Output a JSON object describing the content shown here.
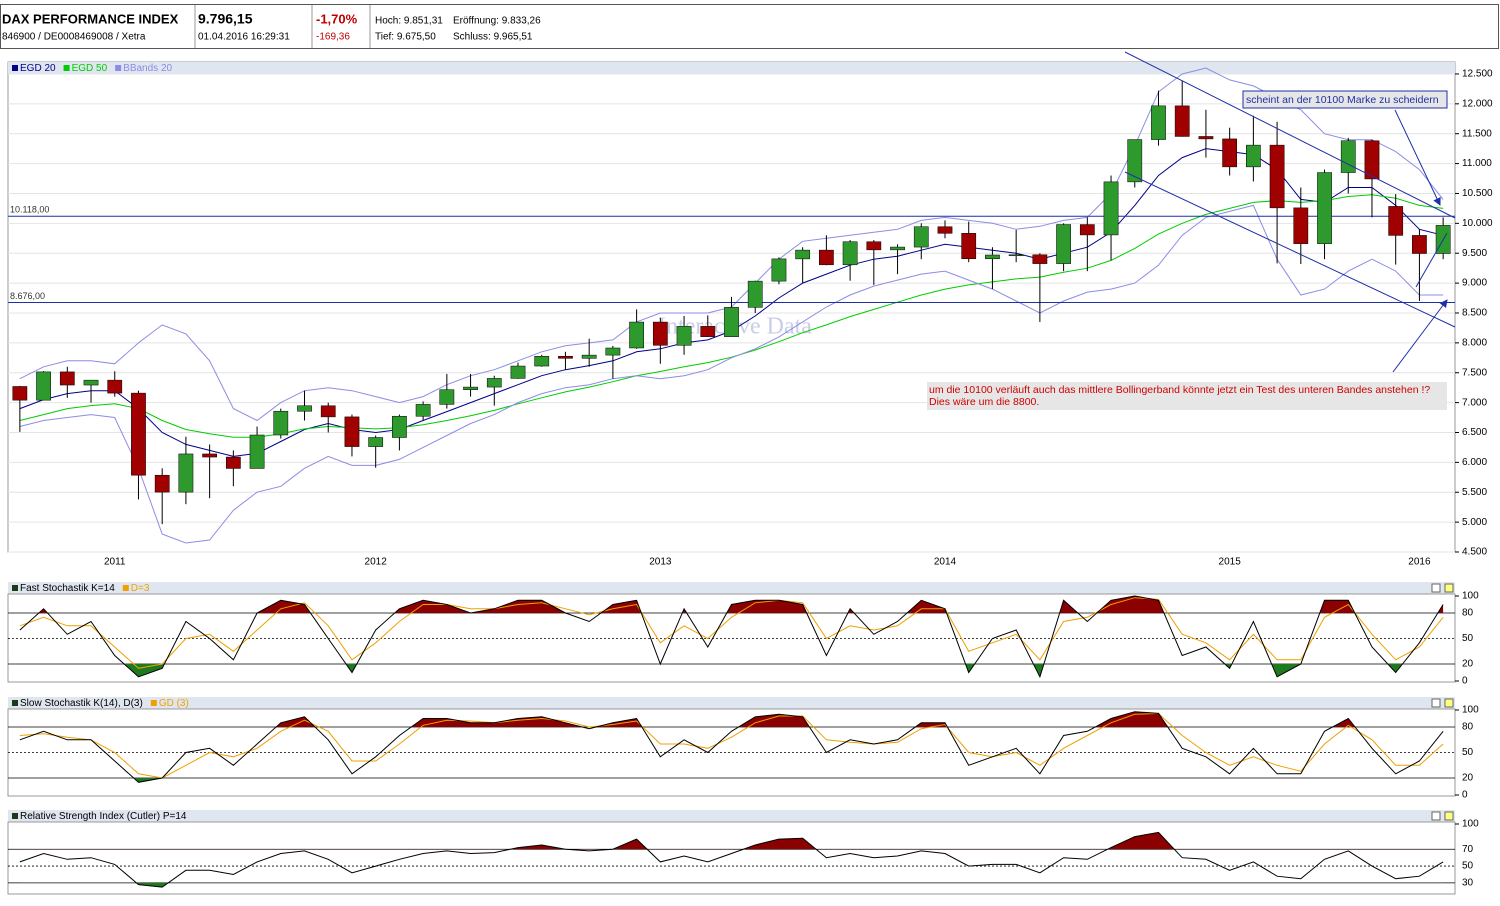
{
  "header": {
    "name": "DAX PERFORMANCE INDEX",
    "ids": "846900 / DE0008469008 / Xetra",
    "price": "9.796,15",
    "time": "01.04.2016 16:29:31",
    "change_pct": "-1,70%",
    "change": "-169,36",
    "high": "Hoch: 9.851,31",
    "open": "Eröffnung: 9.833,26",
    "low": "Tief: 9.675,50",
    "close": "Schluss: 9.965,51"
  },
  "chart_data": [
    {
      "type": "candlestick",
      "watermark": "Interactive Data",
      "categories": [
        null,
        null,
        null,
        null,
        "2011",
        null,
        null,
        null,
        null,
        null,
        null,
        null,
        null,
        null,
        null,
        "2012",
        null,
        null,
        null,
        null,
        null,
        null,
        null,
        null,
        null,
        null,
        null,
        "2013",
        null,
        null,
        null,
        null,
        null,
        null,
        null,
        null,
        null,
        null,
        null,
        "2014",
        null,
        null,
        null,
        null,
        null,
        null,
        null,
        null,
        null,
        null,
        null,
        "2015",
        null,
        null,
        null,
        null,
        null,
        null,
        null,
        "2016",
        null
      ],
      "open": [
        7270,
        7041,
        7514,
        7294,
        7376,
        7159,
        5785,
        5502,
        6141,
        6089,
        5898,
        6458,
        6856,
        6947,
        6761,
        6264,
        6416,
        6772,
        6970,
        7216,
        7260,
        7405,
        7612,
        7776,
        7741,
        7795,
        7914,
        8348,
        7959,
        8276,
        8103,
        8594,
        9033,
        9405,
        9552,
        9306,
        9692,
        9556,
        9603,
        9943,
        9833,
        9407,
        9470,
        9474,
        9326,
        9980,
        9806,
        10694,
        11402,
        11966,
        11454,
        11413,
        10945,
        11309,
        10259,
        9660,
        10850,
        11382,
        10283,
        9798,
        9495
      ],
      "high": [
        7280,
        7527,
        7600,
        7350,
        7524,
        7200,
        5900,
        6430,
        6300,
        6200,
        6600,
        6900,
        7200,
        7000,
        6800,
        6450,
        6800,
        7020,
        7480,
        7480,
        7450,
        7670,
        7800,
        7850,
        8070,
        7950,
        8560,
        8420,
        8450,
        8460,
        8770,
        9040,
        9430,
        9600,
        9800,
        9720,
        9720,
        9650,
        10000,
        10050,
        10030,
        9600,
        9890,
        9500,
        10000,
        10100,
        10800,
        11400,
        12220,
        12390,
        11900,
        11600,
        11800,
        11700,
        10600,
        10900,
        11430,
        11400,
        10490,
        9900,
        10100
      ],
      "low": [
        6510,
        7040,
        7080,
        7000,
        7100,
        5380,
        4966,
        5300,
        5400,
        5600,
        5900,
        6400,
        6700,
        6500,
        6100,
        5910,
        6200,
        6700,
        6900,
        7100,
        6950,
        7400,
        7600,
        7550,
        7600,
        7400,
        7900,
        7650,
        7800,
        8100,
        8100,
        8500,
        8980,
        9000,
        9300,
        9040,
        8970,
        9150,
        9400,
        9750,
        9350,
        8900,
        9350,
        8350,
        9200,
        9200,
        9380,
        10600,
        11300,
        11450,
        11100,
        10800,
        10700,
        9330,
        9320,
        9400,
        10500,
        10100,
        9310,
        8700,
        9400
      ],
      "close": [
        7041,
        7514,
        7294,
        7376,
        7159,
        5785,
        5502,
        6141,
        6089,
        5898,
        6458,
        6856,
        6947,
        6761,
        6264,
        6416,
        6772,
        6970,
        7216,
        7260,
        7405,
        7612,
        7776,
        7741,
        7795,
        7914,
        8348,
        7959,
        8276,
        8103,
        8594,
        9033,
        9405,
        9552,
        9306,
        9692,
        9556,
        9603,
        9943,
        9833,
        9407,
        9470,
        9474,
        9326,
        9980,
        9806,
        10694,
        11402,
        11966,
        11454,
        11413,
        10945,
        11309,
        10259,
        9660,
        10850,
        11382,
        10743,
        9798,
        9495,
        9966
      ],
      "up_color": "#2e9a2e",
      "down_color": "#a00000",
      "series": [
        {
          "name": "EGD 20",
          "color": "#00008b",
          "values": [
            6900,
            7050,
            7150,
            7200,
            7200,
            6900,
            6500,
            6300,
            6200,
            6100,
            6150,
            6350,
            6550,
            6650,
            6550,
            6500,
            6550,
            6700,
            6850,
            7000,
            7150,
            7300,
            7450,
            7550,
            7620,
            7700,
            7850,
            7900,
            8000,
            8050,
            8200,
            8450,
            8750,
            9000,
            9150,
            9300,
            9400,
            9450,
            9550,
            9650,
            9600,
            9550,
            9500,
            9400,
            9500,
            9600,
            9850,
            10300,
            10800,
            11100,
            11250,
            11200,
            11150,
            10900,
            10400,
            10350,
            10600,
            10600,
            10300,
            9900,
            9800
          ]
        },
        {
          "name": "EGD 50",
          "color": "#00cc00",
          "values": [
            6700,
            6800,
            6900,
            6950,
            6980,
            6900,
            6700,
            6550,
            6480,
            6420,
            6420,
            6480,
            6560,
            6600,
            6580,
            6560,
            6580,
            6630,
            6700,
            6780,
            6870,
            6980,
            7080,
            7180,
            7260,
            7350,
            7450,
            7520,
            7600,
            7670,
            7760,
            7880,
            8020,
            8170,
            8300,
            8440,
            8560,
            8680,
            8800,
            8900,
            8970,
            9020,
            9070,
            9100,
            9180,
            9250,
            9380,
            9580,
            9820,
            10000,
            10150,
            10250,
            10350,
            10380,
            10350,
            10380,
            10450,
            10480,
            10420,
            10300,
            10250
          ]
        },
        {
          "name": "BBands 20",
          "color": "#8c8ce6",
          "upper": [
            7400,
            7600,
            7700,
            7700,
            7650,
            8000,
            8300,
            8150,
            7700,
            6900,
            6700,
            7000,
            7200,
            7250,
            7200,
            7100,
            7000,
            7100,
            7300,
            7450,
            7550,
            7700,
            7850,
            7950,
            8000,
            8050,
            8350,
            8500,
            8500,
            8500,
            8600,
            9000,
            9400,
            9700,
            9750,
            9800,
            9850,
            9900,
            10050,
            10100,
            10050,
            10000,
            9900,
            9950,
            10050,
            10100,
            10500,
            11300,
            12200,
            12500,
            12600,
            12400,
            12300,
            12100,
            11900,
            11500,
            11400,
            11400,
            11200,
            10900,
            10400
          ],
          "lower": [
            6600,
            6700,
            6750,
            6800,
            6750,
            5900,
            4800,
            4650,
            4700,
            5200,
            5500,
            5600,
            5900,
            6100,
            5950,
            5950,
            6050,
            6250,
            6450,
            6650,
            6800,
            7000,
            7150,
            7250,
            7300,
            7400,
            7450,
            7400,
            7450,
            7550,
            7750,
            7900,
            8100,
            8350,
            8600,
            8800,
            8950,
            9050,
            9150,
            9200,
            9050,
            8900,
            8700,
            8500,
            8700,
            8850,
            8900,
            9000,
            9300,
            9800,
            10100,
            10200,
            10300,
            9400,
            8800,
            8900,
            9200,
            9400,
            9200,
            8800,
            8800
          ]
        }
      ],
      "ylim": [
        4500,
        12700
      ],
      "yticks": [
        {
          "value": 4500,
          "label": "4.500"
        },
        {
          "value": 5000,
          "label": "5.000"
        },
        {
          "value": 5500,
          "label": "5.500"
        },
        {
          "value": 6000,
          "label": "6.000"
        },
        {
          "value": 6500,
          "label": "6.500"
        },
        {
          "value": 7000,
          "label": "7.000"
        },
        {
          "value": 7500,
          "label": "7.500"
        },
        {
          "value": 8000,
          "label": "8.000"
        },
        {
          "value": 8500,
          "label": "8.500"
        },
        {
          "value": 9000,
          "label": "9.000"
        },
        {
          "value": 9500,
          "label": "9.500"
        },
        {
          "value": 10000,
          "label": "10.000"
        },
        {
          "value": 10500,
          "label": "10.500"
        },
        {
          "value": 11000,
          "label": "11.000"
        },
        {
          "value": 11500,
          "label": "11.500"
        },
        {
          "value": 12000,
          "label": "12.000"
        },
        {
          "value": 12500,
          "label": "12.500"
        }
      ],
      "hlines": [
        {
          "value": 10118,
          "label": "10.118,00"
        },
        {
          "value": 8676,
          "label": "8.676,00"
        }
      ],
      "annotations": [
        "scheint an der 10100 Marke zu scheidern",
        "um die 10100 verläuft auch das mittlere Bollingerband könnte jetzt ein Test des unteren Bandes anstehen !?",
        "Dies wäre um die 8800."
      ]
    },
    {
      "type": "line",
      "fill_above": 80,
      "fill_below": 20,
      "fill_colors": [
        "#8b0000",
        "#1e7a1e"
      ],
      "series": [
        {
          "name": "Fast Stochastik K=14",
          "color": "#000000",
          "values": [
            60,
            85,
            55,
            70,
            30,
            5,
            15,
            70,
            50,
            25,
            80,
            95,
            90,
            50,
            10,
            60,
            85,
            95,
            90,
            80,
            85,
            95,
            95,
            80,
            70,
            90,
            95,
            20,
            85,
            40,
            90,
            95,
            95,
            90,
            30,
            85,
            55,
            70,
            95,
            85,
            10,
            50,
            60,
            5,
            95,
            70,
            95,
            100,
            95,
            30,
            40,
            15,
            70,
            5,
            20,
            95,
            95,
            40,
            10,
            45,
            90
          ]
        },
        {
          "name": "D=3",
          "color": "#f0a000",
          "values": [
            65,
            75,
            65,
            65,
            40,
            15,
            20,
            50,
            55,
            35,
            60,
            85,
            92,
            65,
            25,
            45,
            70,
            90,
            90,
            85,
            85,
            90,
            92,
            85,
            78,
            85,
            90,
            45,
            65,
            50,
            75,
            92,
            95,
            92,
            50,
            65,
            60,
            65,
            85,
            85,
            35,
            45,
            55,
            25,
            70,
            75,
            90,
            98,
            96,
            55,
            45,
            25,
            55,
            25,
            25,
            75,
            90,
            55,
            25,
            40,
            75
          ]
        }
      ],
      "ylim": [
        0,
        100
      ],
      "yticks": [
        0,
        20,
        50,
        80,
        100
      ]
    },
    {
      "type": "line",
      "fill_above": 80,
      "fill_below": 20,
      "fill_colors": [
        "#8b0000",
        "#1e7a1e"
      ],
      "series": [
        {
          "name": "Slow Stochastik K(14), D(3)",
          "color": "#000000",
          "values": [
            65,
            75,
            65,
            65,
            40,
            15,
            20,
            50,
            55,
            35,
            60,
            85,
            92,
            65,
            25,
            45,
            70,
            90,
            90,
            85,
            85,
            90,
            92,
            85,
            78,
            85,
            90,
            45,
            65,
            50,
            75,
            92,
            95,
            92,
            50,
            65,
            60,
            65,
            85,
            85,
            35,
            45,
            55,
            25,
            70,
            75,
            90,
            98,
            96,
            55,
            45,
            25,
            55,
            25,
            25,
            75,
            90,
            55,
            25,
            40,
            75
          ]
        },
        {
          "name": "GD (3)",
          "color": "#f0a000",
          "values": [
            70,
            72,
            68,
            65,
            50,
            25,
            20,
            35,
            50,
            45,
            55,
            75,
            88,
            75,
            40,
            40,
            60,
            82,
            88,
            87,
            85,
            88,
            90,
            87,
            80,
            83,
            87,
            60,
            60,
            55,
            68,
            85,
            93,
            93,
            65,
            62,
            60,
            62,
            78,
            83,
            50,
            45,
            50,
            35,
            55,
            70,
            85,
            95,
            96,
            70,
            50,
            35,
            45,
            35,
            28,
            60,
            82,
            65,
            35,
            35,
            60
          ]
        }
      ],
      "ylim": [
        0,
        100
      ],
      "yticks": [
        0,
        20,
        50,
        80,
        100
      ]
    },
    {
      "type": "line",
      "fill_above": 70,
      "fill_below": 30,
      "fill_colors": [
        "#8b0000",
        "#1e7a1e"
      ],
      "series": [
        {
          "name": "Relative Strength Index (Cutler) P=14",
          "color": "#000000",
          "values": [
            55,
            65,
            58,
            60,
            52,
            28,
            25,
            45,
            45,
            40,
            55,
            65,
            68,
            58,
            42,
            50,
            58,
            65,
            68,
            65,
            66,
            72,
            75,
            70,
            68,
            70,
            82,
            55,
            62,
            55,
            65,
            75,
            82,
            83,
            60,
            65,
            60,
            62,
            68,
            65,
            50,
            52,
            52,
            42,
            60,
            58,
            72,
            85,
            90,
            60,
            58,
            45,
            55,
            38,
            35,
            58,
            68,
            50,
            35,
            38,
            55
          ]
        }
      ],
      "ylim": [
        18,
        100
      ],
      "yticks": [
        30,
        50,
        70,
        100
      ]
    }
  ]
}
